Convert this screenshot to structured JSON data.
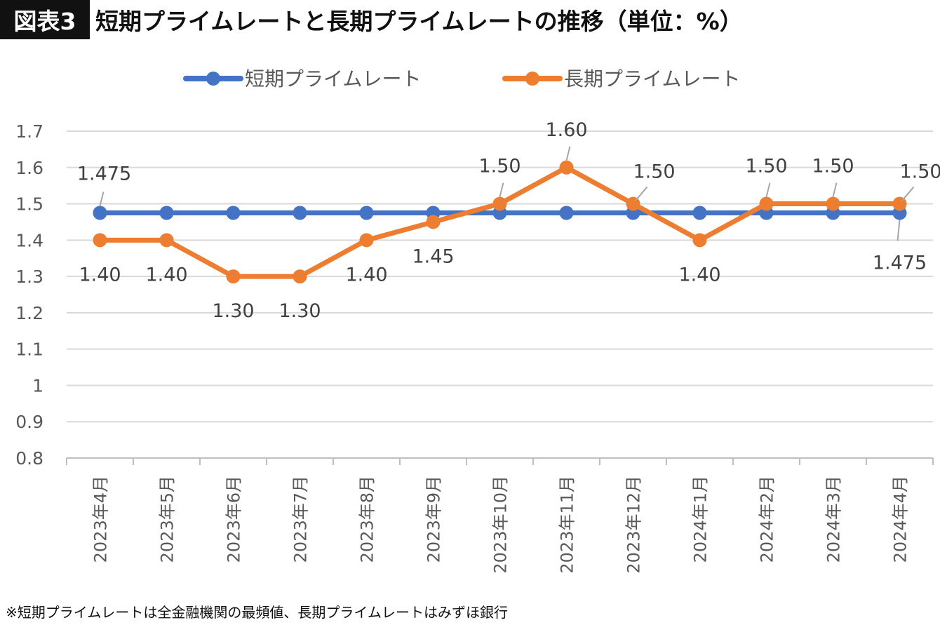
{
  "title_badge": "図表3",
  "title": "短期プライムレートと長期プライムレートの推移（単位：%）",
  "footnote": "※短期プライムレートは全金融機関の最頻値、長期プライムレートはみずほ銀行",
  "chart_data": {
    "type": "line",
    "categories": [
      "2023年4月",
      "2023年5月",
      "2023年6月",
      "2023年7月",
      "2023年8月",
      "2023年9月",
      "2023年10月",
      "2023年11月",
      "2023年12月",
      "2024年1月",
      "2024年2月",
      "2024年3月",
      "2024年4月"
    ],
    "ylim": [
      0.8,
      1.7
    ],
    "yticks": [
      "0.8",
      "0.9",
      "1",
      "1.1",
      "1.2",
      "1.3",
      "1.4",
      "1.5",
      "1.6",
      "1.7"
    ],
    "grid": true,
    "legend": "top",
    "series": [
      {
        "name": "短期プライムレート",
        "color": "#4472C4",
        "values": [
          1.475,
          1.475,
          1.475,
          1.475,
          1.475,
          1.475,
          1.475,
          1.475,
          1.475,
          1.475,
          1.475,
          1.475,
          1.475
        ],
        "labels": [
          {
            "index": 0,
            "text": "1.475",
            "pos": "above"
          },
          {
            "index": 12,
            "text": "1.475",
            "pos": "below"
          }
        ]
      },
      {
        "name": "長期プライムレート",
        "color": "#ED7D31",
        "values": [
          1.4,
          1.4,
          1.3,
          1.3,
          1.4,
          1.45,
          1.5,
          1.6,
          1.5,
          1.4,
          1.5,
          1.5,
          1.5
        ],
        "labels": [
          {
            "index": 0,
            "text": "1.40",
            "pos": "below"
          },
          {
            "index": 1,
            "text": "1.40",
            "pos": "below"
          },
          {
            "index": 2,
            "text": "1.30",
            "pos": "below"
          },
          {
            "index": 3,
            "text": "1.30",
            "pos": "below"
          },
          {
            "index": 4,
            "text": "1.40",
            "pos": "below"
          },
          {
            "index": 5,
            "text": "1.45",
            "pos": "below"
          },
          {
            "index": 6,
            "text": "1.50",
            "pos": "above"
          },
          {
            "index": 7,
            "text": "1.60",
            "pos": "above"
          },
          {
            "index": 8,
            "text": "1.50",
            "pos": "above-right"
          },
          {
            "index": 9,
            "text": "1.40",
            "pos": "below"
          },
          {
            "index": 10,
            "text": "1.50",
            "pos": "above"
          },
          {
            "index": 11,
            "text": "1.50",
            "pos": "above"
          },
          {
            "index": 12,
            "text": "1.50",
            "pos": "above-right"
          }
        ]
      }
    ]
  }
}
